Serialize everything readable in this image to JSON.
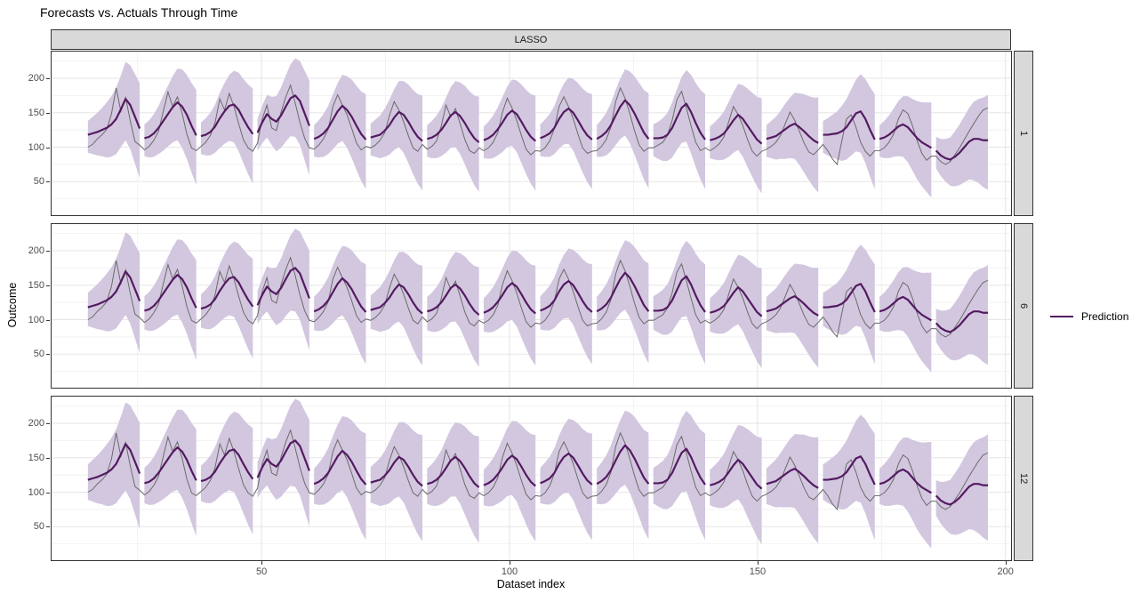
{
  "title": "Forecasts vs. Actuals Through Time",
  "facet_strip_top": "LASSO",
  "facets": [
    {
      "label": "1",
      "band_scale": 1.0
    },
    {
      "label": "6",
      "band_scale": 1.05
    },
    {
      "label": "12",
      "band_scale": 1.12
    }
  ],
  "axes": {
    "x_label": "Dataset index",
    "y_label": "Outcome",
    "x_ticks": [
      50,
      100,
      150,
      200
    ],
    "x_minor": [
      25,
      75,
      125,
      175
    ],
    "y_ticks": [
      200,
      150,
      100,
      50
    ],
    "y_minor": [
      225,
      175,
      125,
      75,
      25
    ],
    "x_domain": [
      7.5,
      201.3
    ],
    "y_domain": [
      0,
      240
    ]
  },
  "legend": {
    "label": "Prediction"
  },
  "colors": {
    "prediction": "#541A61",
    "actual": "#6b6b6b",
    "ribbon": "#D2C7DF",
    "strip_bg": "#D9D9D9",
    "panel_border": "#333333",
    "grid_major": "#E5E5E5",
    "grid_minor": "#F2F2F2",
    "tick_label": "#4d4d4d"
  },
  "chart_data": {
    "type": "line",
    "has_ribbon": true,
    "x_step": 0.95,
    "band_lower_offsets": [
      26,
      30,
      34,
      38,
      43,
      47,
      51,
      55,
      60,
      64,
      68,
      72
    ],
    "band_upper_offsets": [
      20,
      24,
      28,
      32,
      37,
      41,
      45,
      49,
      54,
      58,
      62,
      66
    ],
    "segments": [
      {
        "x0": 15.0,
        "prediction": [
          118,
          120,
          122,
          125,
          128,
          133,
          141,
          155,
          170,
          161,
          144,
          127
        ],
        "actual": [
          100,
          104,
          112,
          118,
          126,
          148,
          186,
          152,
          172,
          138,
          108,
          103
        ]
      },
      {
        "x0": 26.4,
        "prediction": [
          113,
          115,
          120,
          128,
          138,
          148,
          158,
          165,
          159,
          147,
          131,
          117
        ],
        "actual": [
          96,
          101,
          110,
          123,
          152,
          180,
          159,
          173,
          149,
          119,
          99,
          95
        ]
      },
      {
        "x0": 37.8,
        "prediction": [
          116,
          118,
          122,
          130,
          142,
          152,
          160,
          162,
          154,
          141,
          129,
          119
        ],
        "actual": [
          101,
          107,
          117,
          136,
          170,
          154,
          178,
          159,
          134,
          111,
          99,
          94
        ]
      },
      {
        "x0": 49.2,
        "prediction": [
          121,
          136,
          148,
          141,
          137,
          146,
          159,
          171,
          175,
          167,
          149,
          131
        ],
        "actual": [
          106,
          141,
          161,
          128,
          124,
          151,
          173,
          190,
          164,
          136,
          113,
          99
        ]
      },
      {
        "x0": 60.6,
        "prediction": [
          112,
          115,
          120,
          128,
          140,
          152,
          160,
          154,
          144,
          131,
          119,
          111
        ],
        "actual": [
          97,
          103,
          112,
          126,
          159,
          176,
          161,
          147,
          127,
          106,
          96,
          101
        ]
      },
      {
        "x0": 72.0,
        "prediction": [
          114,
          116,
          118,
          124,
          132,
          143,
          151,
          147,
          137,
          125,
          115,
          109
        ],
        "actual": [
          99,
          103,
          110,
          121,
          146,
          166,
          154,
          137,
          117,
          99,
          94,
          104
        ]
      },
      {
        "x0": 83.4,
        "prediction": [
          112,
          114,
          118,
          125,
          135,
          146,
          151,
          145,
          135,
          123,
          113,
          107
        ],
        "actual": [
          97,
          101,
          109,
          131,
          161,
          144,
          156,
          134,
          111,
          95,
          91,
          99
        ]
      },
      {
        "x0": 94.8,
        "prediction": [
          110,
          113,
          118,
          126,
          136,
          147,
          153,
          148,
          137,
          125,
          115,
          109
        ],
        "actual": [
          95,
          99,
          107,
          121,
          151,
          171,
          157,
          139,
          117,
          97,
          89,
          95
        ]
      },
      {
        "x0": 106.2,
        "prediction": [
          113,
          116,
          120,
          128,
          141,
          151,
          156,
          150,
          139,
          127,
          117,
          111
        ],
        "actual": [
          94,
          99,
          109,
          127,
          159,
          173,
          159,
          141,
          119,
          99,
          91,
          94
        ]
      },
      {
        "x0": 117.6,
        "prediction": [
          112,
          116,
          122,
          132,
          146,
          159,
          168,
          161,
          149,
          135,
          121,
          112
        ],
        "actual": [
          95,
          101,
          111,
          129,
          166,
          186,
          171,
          149,
          124,
          103,
          94,
          99
        ]
      },
      {
        "x0": 129.0,
        "prediction": [
          113,
          113,
          114,
          118,
          128,
          143,
          157,
          163,
          151,
          135,
          121,
          111
        ],
        "actual": [
          99,
          103,
          107,
          117,
          139,
          169,
          181,
          157,
          131,
          107,
          95,
          99
        ]
      },
      {
        "x0": 140.4,
        "prediction": [
          110,
          112,
          115,
          120,
          129,
          139,
          147,
          141,
          131,
          121,
          111,
          105
        ],
        "actual": [
          95,
          99,
          105,
          115,
          137,
          159,
          147,
          131,
          111,
          94,
          87,
          94
        ]
      },
      {
        "x0": 151.8,
        "prediction": [
          112,
          114,
          116,
          121,
          126,
          131,
          134,
          129,
          123,
          116,
          110,
          106
        ],
        "actual": [
          97,
          101,
          107,
          117,
          134,
          151,
          139,
          123,
          106,
          93,
          89,
          96
        ]
      },
      {
        "x0": 163.2,
        "prediction": [
          118,
          118,
          119,
          120,
          123,
          129,
          139,
          149,
          152,
          141,
          125,
          111
        ],
        "actual": [
          104,
          95,
          83,
          75,
          109,
          141,
          147,
          129,
          107,
          94,
          87,
          95
        ]
      },
      {
        "x0": 174.6,
        "prediction": [
          112,
          114,
          118,
          124,
          130,
          133,
          129,
          121,
          113,
          107,
          103,
          99
        ],
        "actual": [
          95,
          99,
          107,
          119,
          141,
          154,
          149,
          131,
          109,
          91,
          81,
          87
        ]
      },
      {
        "x0": 186.0,
        "prediction": [
          95,
          88,
          84,
          82,
          86,
          92,
          100,
          108,
          112,
          112,
          110,
          110
        ],
        "actual": [
          87,
          79,
          75,
          79,
          89,
          99,
          111,
          123,
          134,
          145,
          154,
          157
        ]
      }
    ]
  },
  "layout": {
    "panel_tops": [
      57,
      251,
      445
    ]
  }
}
